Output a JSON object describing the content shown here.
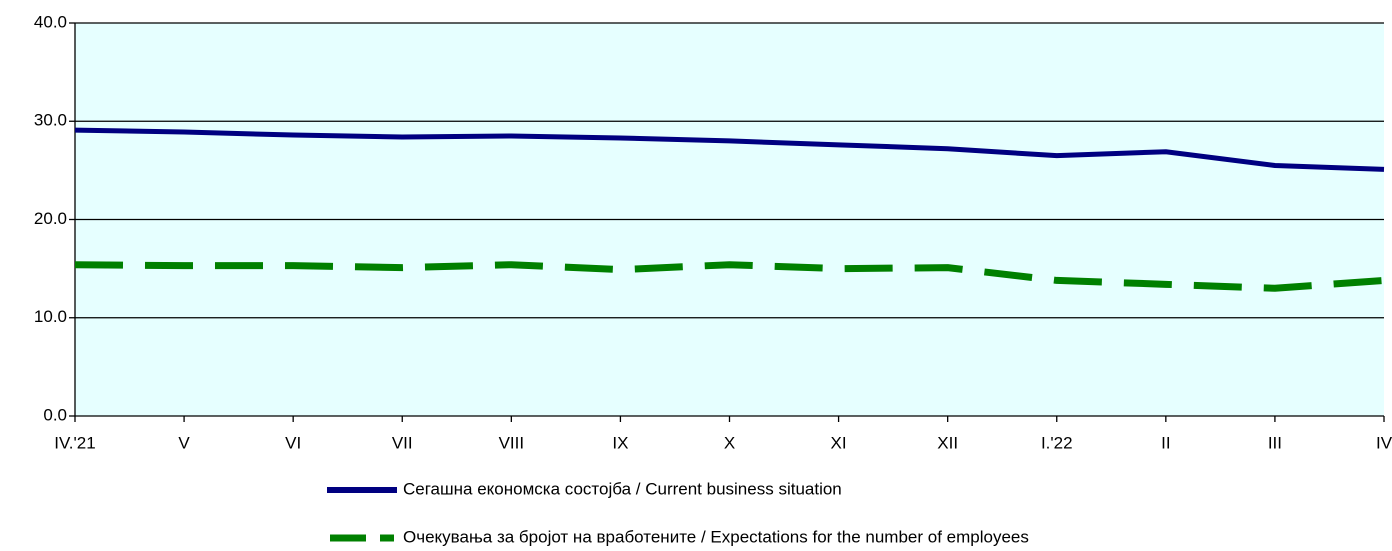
{
  "chart_data": {
    "type": "line",
    "categories": [
      "IV.'21",
      "V",
      "VI",
      "VII",
      "VIII",
      "IX",
      "X",
      "XI",
      "XII",
      "I.'22",
      "II",
      "III",
      "IV"
    ],
    "series": [
      {
        "name": "Сегашна економска состојба / Current business situation",
        "color": "#000080",
        "dash": false,
        "values": [
          29.1,
          28.9,
          28.6,
          28.4,
          28.5,
          28.3,
          28.0,
          27.6,
          27.2,
          26.5,
          26.9,
          25.5,
          25.1
        ]
      },
      {
        "name": "Очекувања за бројот на вработените / Expectations for the number of employees",
        "color": "#008000",
        "dash": true,
        "values": [
          15.4,
          15.3,
          15.3,
          15.1,
          15.4,
          14.9,
          15.4,
          15.0,
          15.1,
          13.8,
          13.4,
          13.0,
          13.8
        ]
      }
    ],
    "ylim": [
      0,
      40
    ],
    "yticks": [
      {
        "value": 0,
        "label": "0.0"
      },
      {
        "value": 10,
        "label": "10.0"
      },
      {
        "value": 20,
        "label": "20.0"
      },
      {
        "value": 30,
        "label": "30.0"
      },
      {
        "value": 40,
        "label": "40.0"
      }
    ],
    "grid": true,
    "background": "#e6ffff"
  }
}
